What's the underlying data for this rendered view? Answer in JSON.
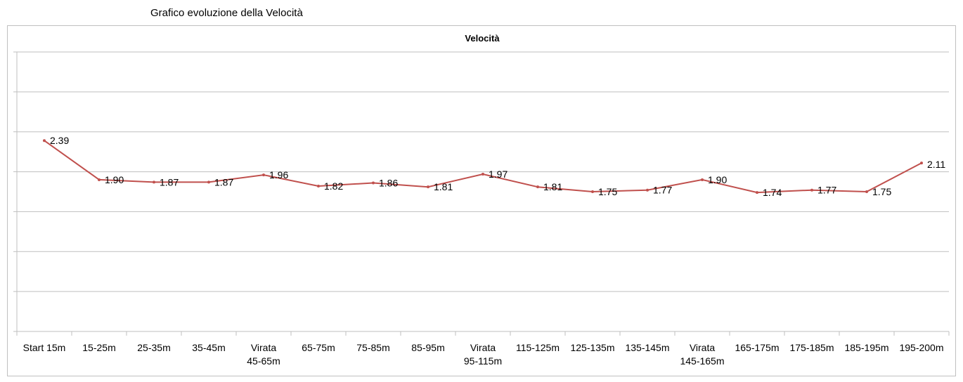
{
  "page": {
    "title": "Grafico evoluzione della Velocità"
  },
  "chart_data": {
    "type": "line",
    "title": "Velocità",
    "xlabel": "",
    "ylabel": "",
    "categories": [
      [
        "Start 15m"
      ],
      [
        "15-25m"
      ],
      [
        "25-35m"
      ],
      [
        "35-45m"
      ],
      [
        "Virata",
        "45-65m"
      ],
      [
        "65-75m"
      ],
      [
        "75-85m"
      ],
      [
        "85-95m"
      ],
      [
        "Virata",
        "95-115m"
      ],
      [
        "115-125m"
      ],
      [
        "125-135m"
      ],
      [
        "135-145m"
      ],
      [
        "Virata",
        "145-165m"
      ],
      [
        "165-175m"
      ],
      [
        "175-185m"
      ],
      [
        "185-195m"
      ],
      [
        "195-200m"
      ]
    ],
    "series": [
      {
        "values": [
          2.39,
          1.9,
          1.87,
          1.87,
          1.96,
          1.82,
          1.86,
          1.81,
          1.97,
          1.81,
          1.75,
          1.77,
          1.9,
          1.74,
          1.77,
          1.75,
          2.11
        ],
        "labels": [
          "2.39",
          "1.90",
          "1.87",
          "1.87",
          "1.96",
          "1.82",
          "1.86",
          "1.81",
          "1.97",
          "1.81",
          "1.75",
          "1.77",
          "1.90",
          "1.74",
          "1.77",
          "1.75",
          "2.11"
        ],
        "color": "#c0504d"
      }
    ],
    "ylim": [
      0,
      3.5
    ],
    "y_gridline_step": 0.5,
    "y_tick_labels_shown": false,
    "grid": true,
    "legend": "none"
  }
}
